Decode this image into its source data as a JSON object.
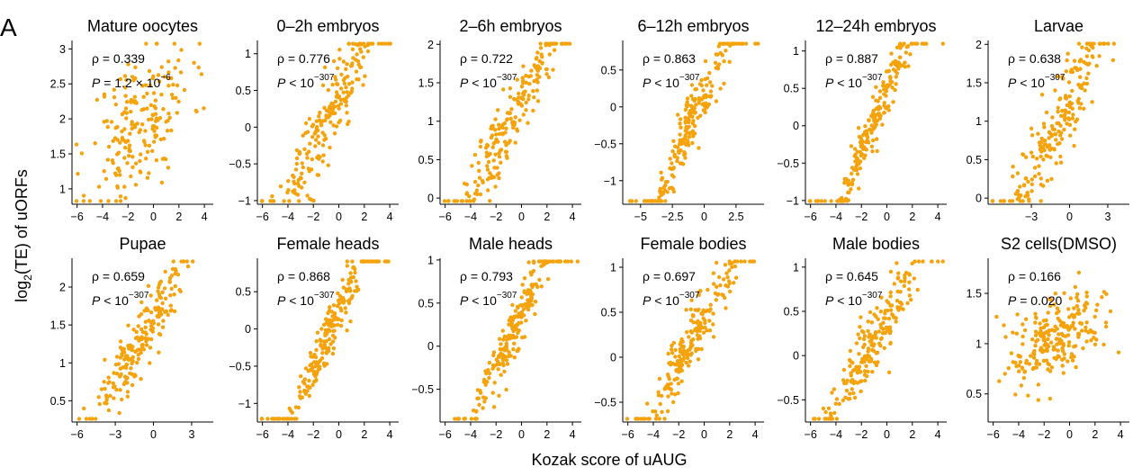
{
  "figure": {
    "panel_letter": "A",
    "xlabel": "Kozak score of uAUG",
    "ylabel_main": "log",
    "ylabel_sub": "2",
    "ylabel_rest": "(TE) of uORFs"
  },
  "chart_data": [
    {
      "type": "scatter",
      "title": "Mature oocytes",
      "xticks": [
        -6,
        -4,
        -2,
        0,
        2,
        4
      ],
      "xlim": [
        -6.4,
        4.7
      ],
      "yticks": [
        1.0,
        1.5,
        2.0,
        2.5,
        3.0
      ],
      "ylim": [
        0.78,
        3.12
      ],
      "rho": "ρ = 0.339",
      "p_main": "P = 1.2 × 10",
      "p_sup": "−6",
      "slope": 0.065,
      "noise": 0.5,
      "n": 200,
      "seed": 11
    },
    {
      "type": "scatter",
      "title": "0–2h embryos",
      "xticks": [
        -6,
        -4,
        -2,
        0,
        2,
        4
      ],
      "xlim": [
        -6.4,
        4.7
      ],
      "yticks": [
        -1.0,
        -0.5,
        0.0,
        0.5,
        1.0
      ],
      "ylim": [
        -1.05,
        1.18
      ],
      "rho": "ρ = 0.776",
      "p_main": "P < 10",
      "p_sup": "−307",
      "slope": 0.135,
      "noise": 0.25,
      "n": 210,
      "seed": 23
    },
    {
      "type": "scatter",
      "title": "2–6h embryos",
      "xticks": [
        -6,
        -4,
        -2,
        0,
        2,
        4
      ],
      "xlim": [
        -6.4,
        4.7
      ],
      "yticks": [
        0.0,
        0.5,
        1.0,
        1.5,
        2.0
      ],
      "ylim": [
        -0.08,
        2.05
      ],
      "rho": "ρ = 0.722",
      "p_main": "P < 10",
      "p_sup": "−307",
      "slope": 0.13,
      "noise": 0.24,
      "n": 210,
      "seed": 37
    },
    {
      "type": "scatter",
      "title": "6–12h embryos",
      "xticks": [
        -5.0,
        -2.5,
        0.0,
        2.5
      ],
      "xlim": [
        -6.4,
        4.7
      ],
      "yticks": [
        -1.0,
        -0.5,
        0.0,
        0.5
      ],
      "ylim": [
        -1.32,
        0.9
      ],
      "rho": "ρ = 0.863",
      "p_main": "P < 10",
      "p_sup": "−307",
      "slope": 0.17,
      "noise": 0.2,
      "n": 220,
      "seed": 41
    },
    {
      "type": "scatter",
      "title": "12–24h embryos",
      "xticks": [
        -6,
        -4,
        -2,
        0,
        2,
        4
      ],
      "xlim": [
        -6.4,
        4.7
      ],
      "yticks": [
        -1.0,
        -0.5,
        0.0,
        0.5,
        1.0
      ],
      "ylim": [
        -1.05,
        1.14
      ],
      "rho": "ρ = 0.887",
      "p_main": "P < 10",
      "p_sup": "−307",
      "slope": 0.17,
      "noise": 0.17,
      "n": 220,
      "seed": 53
    },
    {
      "type": "scatter",
      "title": "Larvae",
      "xticks": [
        -3,
        0,
        3
      ],
      "xlim": [
        -6.4,
        4.7
      ],
      "yticks": [
        0.0,
        0.5,
        1.0,
        1.5,
        2.0
      ],
      "ylim": [
        -0.08,
        2.05
      ],
      "rho": "ρ = 0.638",
      "p_main": "P < 10",
      "p_sup": "−307",
      "slope": 0.13,
      "noise": 0.3,
      "n": 210,
      "seed": 61
    },
    {
      "type": "scatter",
      "title": "Pupae",
      "xticks": [
        -6,
        -3,
        0,
        3
      ],
      "xlim": [
        -6.4,
        4.7
      ],
      "yticks": [
        0.5,
        1.0,
        1.5,
        2.0
      ],
      "ylim": [
        0.22,
        2.38
      ],
      "rho": "ρ = 0.659",
      "p_main": "P < 10",
      "p_sup": "−307",
      "slope": 0.12,
      "noise": 0.24,
      "n": 210,
      "seed": 71
    },
    {
      "type": "scatter",
      "title": "Female heads",
      "xticks": [
        -6,
        -4,
        -2,
        0,
        2,
        4
      ],
      "xlim": [
        -6.4,
        4.7
      ],
      "yticks": [
        -1.0,
        -0.5,
        0.0,
        0.5
      ],
      "ylim": [
        -1.25,
        0.95
      ],
      "rho": "ρ = 0.868",
      "p_main": "P < 10",
      "p_sup": "−307",
      "slope": 0.16,
      "noise": 0.18,
      "n": 220,
      "seed": 83
    },
    {
      "type": "scatter",
      "title": "Male heads",
      "xticks": [
        -6,
        -4,
        -2,
        0,
        2,
        4
      ],
      "xlim": [
        -6.4,
        4.7
      ],
      "yticks": [
        -0.5,
        0.0,
        0.5,
        1.0
      ],
      "ylim": [
        -0.88,
        1.02
      ],
      "rho": "ρ = 0.793",
      "p_main": "P < 10",
      "p_sup": "−307",
      "slope": 0.14,
      "noise": 0.2,
      "n": 215,
      "seed": 97
    },
    {
      "type": "scatter",
      "title": "Female bodies",
      "xticks": [
        -6,
        -4,
        -2,
        0,
        2,
        4
      ],
      "xlim": [
        -6.4,
        4.7
      ],
      "yticks": [
        -0.5,
        0.0,
        0.5,
        1.0
      ],
      "ylim": [
        -0.72,
        1.1
      ],
      "rho": "ρ = 0.697",
      "p_main": "P < 10",
      "p_sup": "−307",
      "slope": 0.1,
      "noise": 0.2,
      "n": 210,
      "seed": 103
    },
    {
      "type": "scatter",
      "title": "Male bodies",
      "xticks": [
        -6,
        -4,
        -2,
        0,
        2,
        4
      ],
      "xlim": [
        -6.4,
        4.7
      ],
      "yticks": [
        -0.5,
        0.0,
        0.5,
        1.0
      ],
      "ylim": [
        -0.75,
        1.1
      ],
      "rho": "ρ = 0.645",
      "p_main": "P < 10",
      "p_sup": "−307",
      "slope": 0.1,
      "noise": 0.22,
      "n": 210,
      "seed": 113
    },
    {
      "type": "scatter",
      "title": "S2 cells(DMSO)",
      "xticks": [
        -6,
        -4,
        -2,
        0,
        2,
        4
      ],
      "xlim": [
        -6.4,
        4.7
      ],
      "yticks": [
        0.5,
        1.0,
        1.5
      ],
      "ylim": [
        0.22,
        1.85
      ],
      "rho": "ρ = 0.166",
      "p_main": "P = 0.020",
      "p_sup": "",
      "slope": 0.02,
      "noise": 0.28,
      "n": 230,
      "seed": 127
    }
  ],
  "colors": {
    "points": "#f5a30c",
    "axes": "#000000"
  }
}
